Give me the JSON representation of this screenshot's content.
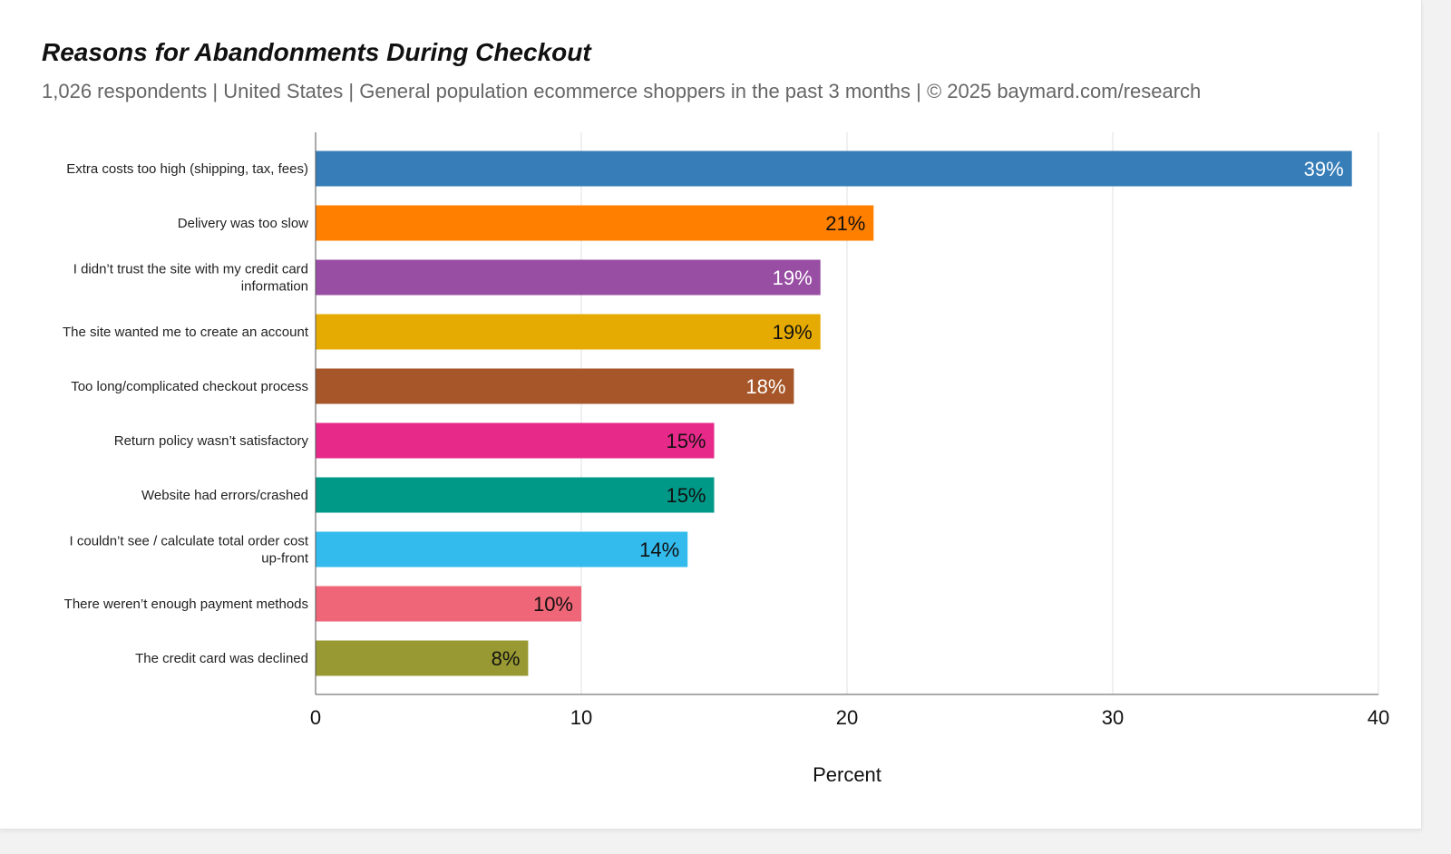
{
  "chart_data": {
    "type": "bar",
    "orientation": "horizontal",
    "title": "Reasons for Abandonments During Checkout",
    "subtitle": "1,026 respondents  |  United States  |  General population ecommerce shoppers in the past 3 months | © 2025 baymard.com/research",
    "xlabel": "Percent",
    "ylabel": "",
    "xlim": [
      0,
      40
    ],
    "xticks": [
      0,
      10,
      20,
      30,
      40
    ],
    "grid": true,
    "legend": "none",
    "categories": [
      [
        "Extra costs too high (shipping, tax, fees)"
      ],
      [
        "Delivery was too slow"
      ],
      [
        "I didn’t trust the site with my credit card",
        "information"
      ],
      [
        "The site wanted me to create an account"
      ],
      [
        "Too long/complicated checkout process"
      ],
      [
        "Return policy wasn’t satisfactory"
      ],
      [
        "Website had errors/crashed"
      ],
      [
        "I couldn’t see / calculate total order cost",
        "up-front"
      ],
      [
        "There weren’t enough payment methods"
      ],
      [
        "The credit card was declined"
      ]
    ],
    "values": [
      39,
      21,
      19,
      19,
      18,
      15,
      15,
      14,
      10,
      8
    ],
    "data_labels": [
      "39%",
      "21%",
      "19%",
      "19%",
      "18%",
      "15%",
      "15%",
      "14%",
      "10%",
      "8%"
    ],
    "colors": [
      "#377eb8",
      "#ff7f00",
      "#984ea3",
      "#e6ab02",
      "#a65628",
      "#e7298a",
      "#009988",
      "#33bbee",
      "#ee6677",
      "#999933"
    ],
    "label_colors": [
      "#ffffff",
      "#111111",
      "#ffffff",
      "#111111",
      "#ffffff",
      "#111111",
      "#111111",
      "#111111",
      "#111111",
      "#111111"
    ]
  }
}
